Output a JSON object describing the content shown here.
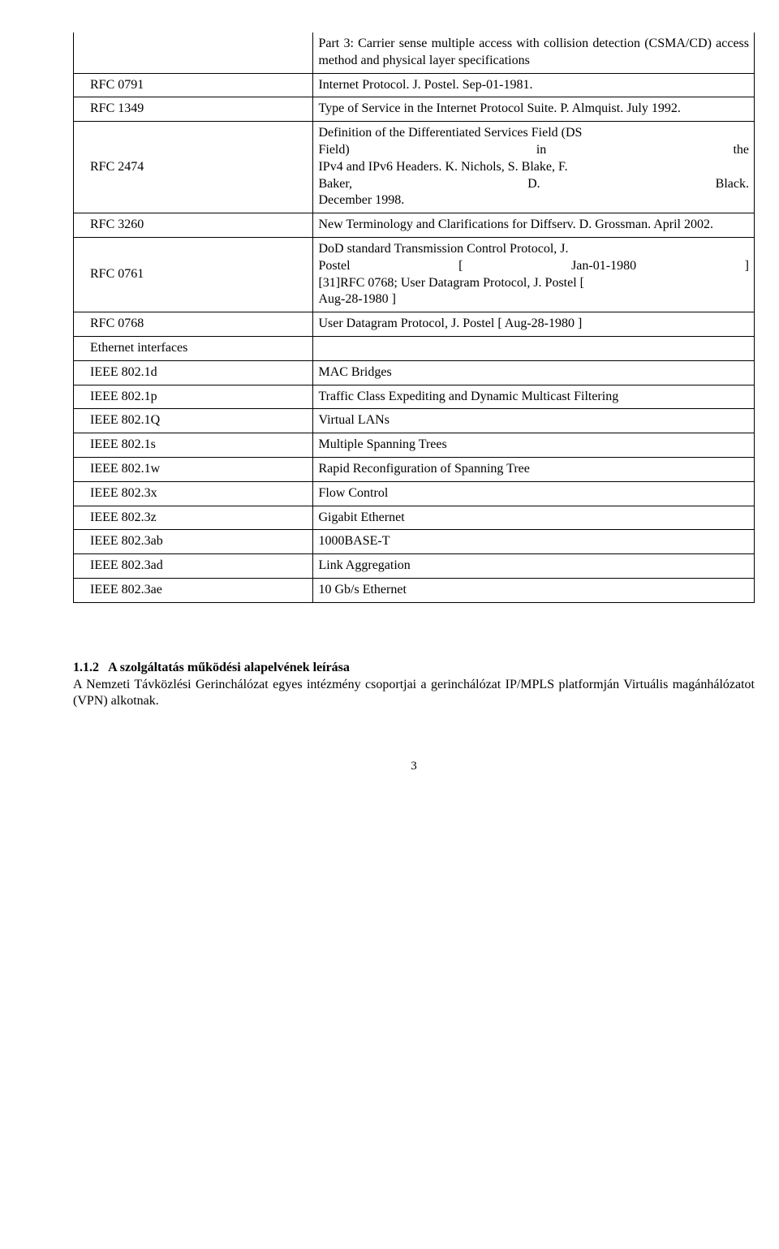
{
  "table": {
    "rows": [
      {
        "standard": "",
        "desc_html": "Part 3: Carrier sense multiple access with collision detection (CSMA/CD) access method and physical layer specifications",
        "no_top": true
      },
      {
        "standard": "RFC 0791",
        "desc_html": "Internet Protocol. J. Postel. Sep-01-1981."
      },
      {
        "standard": "RFC 1349",
        "desc_html": "Type of Service in the Internet Protocol Suite. P. Almquist. July 1992."
      },
      {
        "standard": "RFC 2474",
        "desc_lines": [
          [
            "Definition of the Differentiated Services Field (DS"
          ],
          [
            "Field)",
            "in",
            "the"
          ],
          [
            "IPv4 and IPv6 Headers. K. Nichols, S. Blake, F."
          ],
          [
            "Baker,",
            "D.",
            "Black."
          ],
          [
            "December 1998."
          ]
        ]
      },
      {
        "standard": "RFC 3260",
        "desc_html": "New Terminology and Clarifications for Diffserv. D. Grossman. April 2002."
      },
      {
        "standard": "RFC 0761",
        "desc_lines": [
          [
            "DoD standard Transmission Control Protocol, J."
          ],
          [
            "Postel",
            "[",
            "Jan-01-1980",
            "]"
          ],
          [
            "[31]RFC 0768;  User Datagram Protocol, J. Postel ["
          ],
          [
            "Aug-28-1980 ]"
          ]
        ]
      },
      {
        "standard": "RFC 0768",
        "desc_html": "User Datagram Protocol, J. Postel [ Aug-28-1980 ]"
      },
      {
        "standard": "Ethernet interfaces",
        "desc_html": ""
      },
      {
        "standard": "IEEE 802.1d",
        "desc_html": "MAC Bridges"
      },
      {
        "standard": "IEEE 802.1p",
        "desc_html": "Traffic Class Expediting and Dynamic Multicast Filtering"
      },
      {
        "standard": "IEEE 802.1Q",
        "desc_html": "Virtual LANs"
      },
      {
        "standard": "IEEE 802.1s",
        "desc_html": "Multiple Spanning Trees"
      },
      {
        "standard": "IEEE 802.1w",
        "desc_html": "Rapid Reconfiguration of Spanning Tree"
      },
      {
        "standard": "IEEE 802.3x",
        "desc_html": "Flow Control"
      },
      {
        "standard": "IEEE 802.3z",
        "desc_html": "Gigabit Ethernet"
      },
      {
        "standard": "IEEE 802.3ab",
        "desc_html": "1000BASE-T"
      },
      {
        "standard": "IEEE 802.3ad",
        "desc_html": "Link Aggregation"
      },
      {
        "standard": "IEEE 802.3ae",
        "desc_html": "10 Gb/s Ethernet"
      }
    ]
  },
  "section": {
    "number": "1.1.2",
    "title": "A szolgáltatás működési alapelvének leírása",
    "body": "A Nemzeti Távközlési Gerinchálózat egyes intézmény csoportjai a gerinchálózat IP/MPLS platformján Virtuális magánhálózatot (VPN) alkotnak."
  },
  "page_number": "3"
}
